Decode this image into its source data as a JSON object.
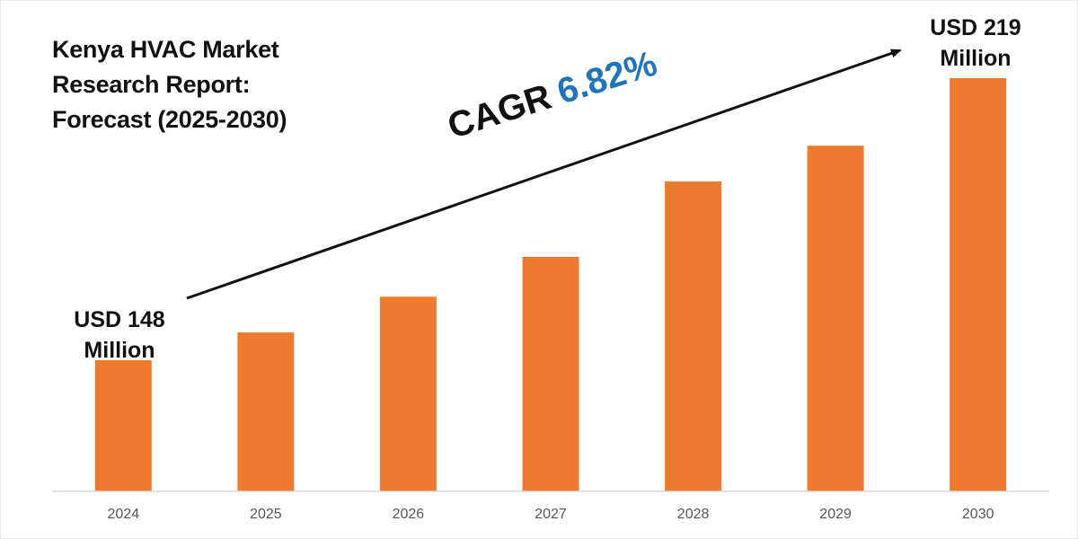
{
  "title": {
    "line1": "Kenya HVAC Market",
    "line2": "Research Report:",
    "line3": "Forecast (2025-2030)"
  },
  "callouts": {
    "start_line1": "USD 148",
    "start_line2": "Million",
    "end_line1": "USD 219",
    "end_line2": "Million"
  },
  "cagr": {
    "label": "CAGR",
    "value": "6.82%"
  },
  "colors": {
    "bar": "#ee7a30",
    "axis": "#d9d9d9",
    "cagr_value": "#1f74bb",
    "text": "#111111"
  },
  "chart_data": {
    "type": "bar",
    "categories": [
      "2024",
      "2025",
      "2026",
      "2027",
      "2028",
      "2029",
      "2030"
    ],
    "values": [
      148,
      155,
      164,
      174,
      193,
      202,
      219
    ],
    "ylim": [
      115,
      225
    ],
    "grid": false,
    "title": "Kenya HVAC Market Research Report: Forecast (2025-2030)"
  }
}
